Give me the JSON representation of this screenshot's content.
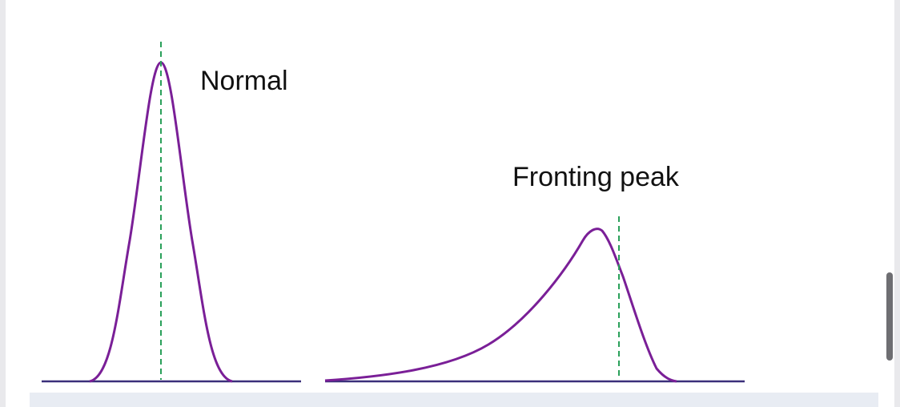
{
  "labels": {
    "normal": "Normal",
    "fronting": "Fronting peak"
  },
  "colors": {
    "peak": "#7a1f97",
    "baseline": "#3a2f7a",
    "center_line": "#2aa05a",
    "scrollbar": "#6e6e72",
    "frame": "#e9e9ec",
    "strip": "#e8ecf3"
  },
  "scrollbar": {
    "visible": true
  }
}
